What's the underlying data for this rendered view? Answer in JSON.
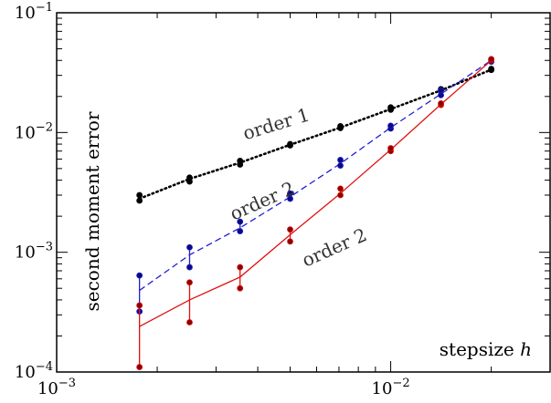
{
  "chart_data": {
    "type": "line",
    "xscale": "log",
    "yscale": "log",
    "xlim": [
      0.001,
      0.03
    ],
    "ylim": [
      0.0001,
      0.1
    ],
    "xlabel": "stepsize h",
    "ylabel": "second moment error",
    "x_ticks": [
      {
        "value": 0.001,
        "base": "10",
        "exp": "−3"
      },
      {
        "value": 0.01,
        "base": "10",
        "exp": "−2"
      }
    ],
    "y_ticks": [
      {
        "value": 0.0001,
        "base": "10",
        "exp": "−4"
      },
      {
        "value": 0.001,
        "base": "10",
        "exp": "−3"
      },
      {
        "value": 0.01,
        "base": "10",
        "exp": "−2"
      },
      {
        "value": 0.1,
        "base": "10",
        "exp": "−1"
      }
    ],
    "grid": false,
    "series": [
      {
        "color": "#000000",
        "dash": "dotted",
        "x": [
          0.00177,
          0.0025,
          0.00354,
          0.005,
          0.00707,
          0.01,
          0.01414,
          0.02
        ],
        "line": [
          0.0028,
          0.0041,
          0.0056,
          0.0079,
          0.011,
          0.0157,
          0.0225,
          0.0335
        ],
        "points_low": [
          0.0027,
          0.0039,
          0.0054,
          0.0078,
          0.0109,
          0.0155,
          0.0222,
          0.0333
        ],
        "points_high": [
          0.003,
          0.0042,
          0.0058,
          0.008,
          0.0113,
          0.0162,
          0.023,
          0.034
        ]
      },
      {
        "color": "#1f1fd0",
        "dash": "dashed",
        "x": [
          0.00177,
          0.0025,
          0.00354,
          0.005,
          0.00707,
          0.01,
          0.01414,
          0.02
        ],
        "line": [
          0.00048,
          0.00095,
          0.0016,
          0.0029,
          0.0055,
          0.011,
          0.021,
          0.04
        ],
        "points_low": [
          0.00032,
          0.00075,
          0.0015,
          0.0028,
          0.0053,
          0.0108,
          0.0205,
          0.039
        ],
        "points_high": [
          0.00064,
          0.0011,
          0.0018,
          0.0031,
          0.0059,
          0.0114,
          0.0225,
          0.041
        ]
      },
      {
        "color": "#e01010",
        "dash": "solid",
        "x": [
          0.00177,
          0.0025,
          0.00354,
          0.005,
          0.00707,
          0.01,
          0.01414,
          0.02
        ],
        "line": [
          0.00024,
          0.0004,
          0.00062,
          0.0014,
          0.0031,
          0.0072,
          0.0172,
          0.04
        ],
        "points_low": [
          0.00011,
          0.00026,
          0.0005,
          0.00123,
          0.003,
          0.007,
          0.017,
          0.04
        ],
        "points_high": [
          0.00036,
          0.00056,
          0.00075,
          0.00155,
          0.0034,
          0.0074,
          0.0175,
          0.041
        ]
      }
    ],
    "annotations": [
      {
        "text": "order 1",
        "x": 0.0046,
        "y": 0.0105,
        "angle": -17
      },
      {
        "text": "order 2",
        "x": 0.0042,
        "y": 0.0024,
        "angle": -24
      },
      {
        "text": "order 2",
        "x": 0.0069,
        "y": 0.00098,
        "angle": -24
      }
    ]
  }
}
